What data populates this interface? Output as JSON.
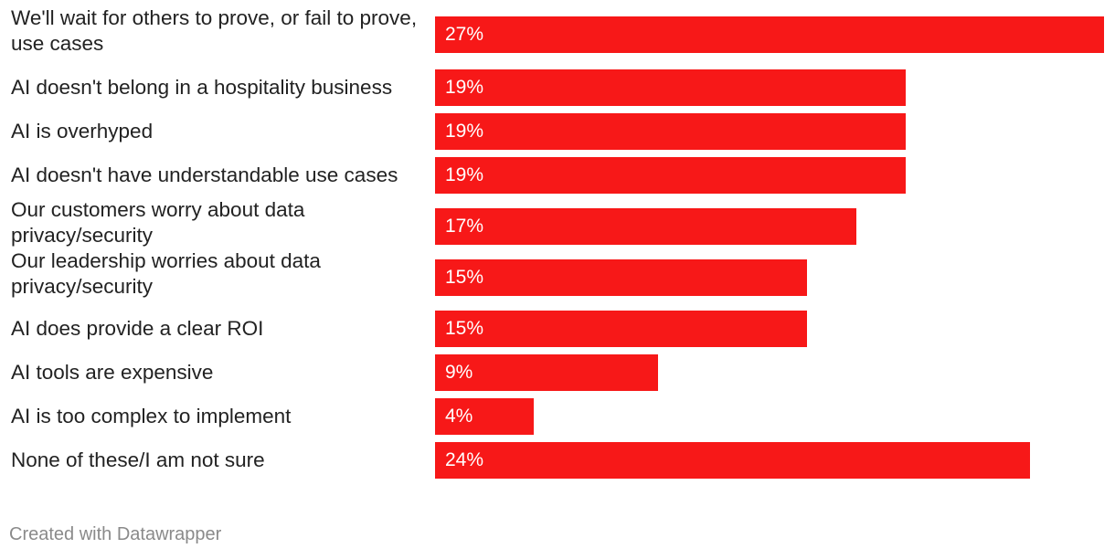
{
  "chart_data": {
    "type": "bar",
    "orientation": "horizontal",
    "categories": [
      "We'll wait for others to prove, or fail to prove, use cases",
      "AI doesn't belong in a hospitality business",
      "AI is overhyped",
      "AI doesn't have understandable use cases",
      "Our customers worry about data privacy/security",
      "Our leadership worries about data privacy/security",
      "AI does provide a clear ROI",
      "AI tools are expensive",
      "AI is too complex to implement",
      "None of these/I am not sure"
    ],
    "values": [
      27,
      19,
      19,
      19,
      17,
      15,
      15,
      9,
      4,
      24
    ],
    "value_labels": [
      "27%",
      "19%",
      "19%",
      "19%",
      "17%",
      "15%",
      "15%",
      "9%",
      "4%",
      "24%"
    ],
    "unit": "%",
    "xlim": [
      0,
      27
    ],
    "bar_color": "#f71818",
    "title": "",
    "xlabel": "",
    "ylabel": ""
  },
  "footer": {
    "credit": "Created with Datawrapper"
  },
  "colors": {
    "bar": "#f71818",
    "label_text": "#222222",
    "value_text": "#ffffff",
    "footer_text": "#8a8a8a"
  }
}
